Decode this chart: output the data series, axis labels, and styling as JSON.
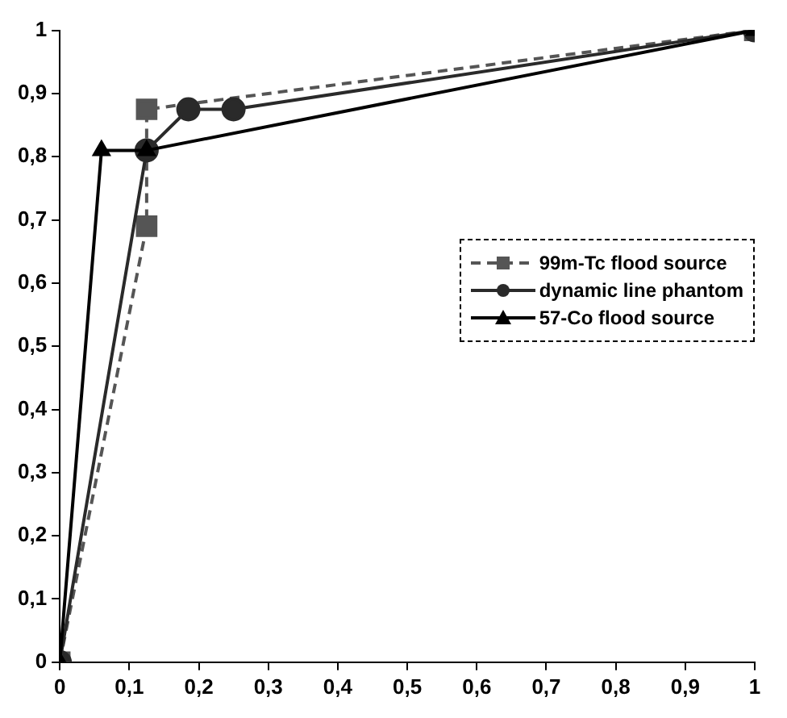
{
  "chart_data": {
    "type": "line",
    "xlim": [
      0,
      1
    ],
    "ylim": [
      0,
      1
    ],
    "xticks": [
      0,
      {
        "value": 0.1,
        "label": "0,1"
      },
      {
        "value": 0.2,
        "label": "0,2"
      },
      {
        "value": 0.3,
        "label": "0,3"
      },
      {
        "value": 0.4,
        "label": "0,4"
      },
      {
        "value": 0.5,
        "label": "0,5"
      },
      {
        "value": 0.6,
        "label": "0,6"
      },
      {
        "value": 0.7,
        "label": "0,7"
      },
      {
        "value": 0.8,
        "label": "0,8"
      },
      {
        "value": 0.9,
        "label": "0,9"
      },
      1
    ],
    "yticks": [
      0,
      {
        "value": 0.1,
        "label": "0,1"
      },
      {
        "value": 0.2,
        "label": "0,2"
      },
      {
        "value": 0.3,
        "label": "0,3"
      },
      {
        "value": 0.4,
        "label": "0,4"
      },
      {
        "value": 0.5,
        "label": "0,5"
      },
      {
        "value": 0.6,
        "label": "0,6"
      },
      {
        "value": 0.7,
        "label": "0,7"
      },
      {
        "value": 0.8,
        "label": "0,8"
      },
      {
        "value": 0.9,
        "label": "0,9"
      },
      1
    ],
    "grid": false,
    "legend": "right",
    "series": [
      {
        "name": "99m-Tc flood source",
        "color": "#555555",
        "marker": "square",
        "line_style": "dashed",
        "x": [
          0,
          0.125,
          0.125,
          1
        ],
        "values": [
          0,
          0.69,
          0.875,
          1
        ]
      },
      {
        "name": "dynamic line phantom",
        "color": "#2a2a2a",
        "marker": "circle",
        "line_style": "solid",
        "x": [
          0,
          0.125,
          0.185,
          0.25,
          1
        ],
        "values": [
          0,
          0.81,
          0.875,
          0.875,
          1
        ]
      },
      {
        "name": "57-Co flood source",
        "color": "#000000",
        "marker": "triangle",
        "line_style": "solid",
        "x": [
          0,
          0.06,
          0.125,
          1
        ],
        "values": [
          0,
          0.81,
          0.81,
          1
        ]
      }
    ]
  }
}
